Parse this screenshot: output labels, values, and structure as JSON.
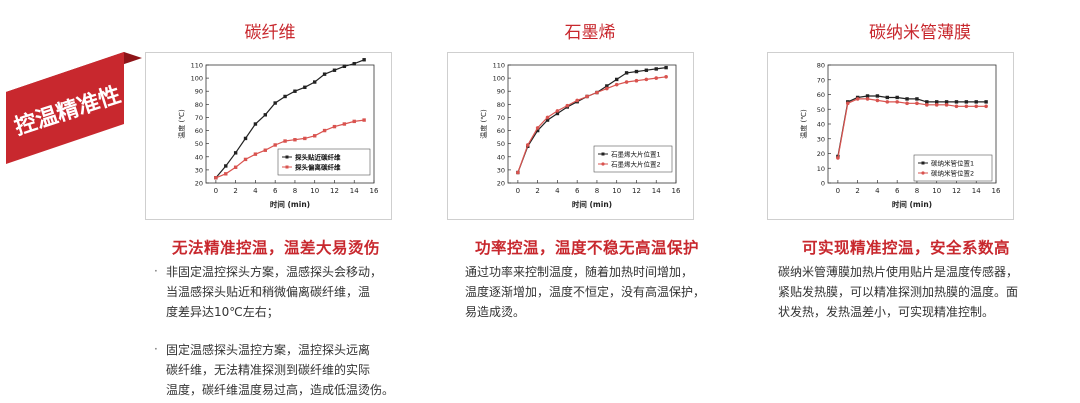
{
  "columns": [
    {
      "title": "碳纤维"
    },
    {
      "title": "石墨烯"
    },
    {
      "title": "碳纳米管薄膜"
    }
  ],
  "banner": {
    "label": "控温精准性",
    "color": "#c8282e"
  },
  "colors": {
    "accent": "#c8282e",
    "series_black": "#222222",
    "series_red": "#d9534f"
  },
  "sections": [
    {
      "heading": "无法精准控温，温差大易烫伤",
      "paras": [
        {
          "bullet": "·",
          "lines": [
            "非固定温控探头方案，温感探头会移动，",
            "当温感探头贴近和稍微偏离碳纤维，温",
            "度差异达10℃左右；"
          ]
        },
        {
          "bullet": "·",
          "lines": [
            "固定温感探头温控方案，温控探头远离",
            "碳纤维，无法精准探测到碳纤维的实际",
            "温度，碳纤维温度易过高，造成低温烫伤。"
          ]
        }
      ]
    },
    {
      "heading": "功率控温，温度不稳无高温保护",
      "paras": [
        {
          "bullet": "",
          "lines": [
            "通过功率来控制温度，随着加热时间增加，",
            "温度逐渐增加，温度不恒定，没有高温保护，",
            "易造成烫。"
          ]
        }
      ]
    },
    {
      "heading": "可实现精准控温，安全系数高",
      "paras": [
        {
          "bullet": "",
          "lines": [
            "碳纳米管薄膜加热片使用贴片是温度传感器，",
            "紧贴发热膜，可以精准探测加热膜的温度。面",
            "状发热，发热温差小，可实现精准控制。"
          ]
        }
      ]
    }
  ],
  "chart_data": [
    {
      "type": "line",
      "xlabel": "时间 (min)",
      "ylabel": "温度 (℃)",
      "xlim": [
        -1,
        16
      ],
      "ylim": [
        20,
        110
      ],
      "xticks": [
        0,
        2,
        4,
        6,
        8,
        10,
        12,
        14,
        16
      ],
      "yticks": [
        20,
        30,
        40,
        50,
        60,
        70,
        80,
        90,
        100,
        110
      ],
      "legend_position": "bottom-right",
      "series": [
        {
          "name": "探头贴近碳纤维",
          "color": "#222222",
          "marker": "square",
          "x": [
            0,
            1,
            2,
            3,
            4,
            5,
            6,
            7,
            8,
            9,
            10,
            11,
            12,
            13,
            14,
            15
          ],
          "y": [
            24,
            33,
            43,
            54,
            65,
            72,
            81,
            86,
            90,
            93,
            97,
            103,
            106,
            109,
            111,
            114
          ]
        },
        {
          "name": "探头偏离碳纤维",
          "color": "#d9534f",
          "marker": "square",
          "x": [
            0,
            1,
            2,
            3,
            4,
            5,
            6,
            7,
            8,
            9,
            10,
            11,
            12,
            13,
            14,
            15
          ],
          "y": [
            24,
            27,
            32,
            38,
            42,
            45,
            49,
            52,
            53,
            54,
            56,
            60,
            63,
            65,
            67,
            68
          ]
        }
      ]
    },
    {
      "type": "line",
      "xlabel": "时间 (min)",
      "ylabel": "温度 (℃)",
      "xlim": [
        -1,
        16
      ],
      "ylim": [
        20,
        110
      ],
      "xticks": [
        0,
        2,
        4,
        6,
        8,
        10,
        12,
        14,
        16
      ],
      "yticks": [
        20,
        30,
        40,
        50,
        60,
        70,
        80,
        90,
        100,
        110
      ],
      "legend_position": "middle-right",
      "series": [
        {
          "name": "石墨烯大片位置1",
          "color": "#222222",
          "marker": "square",
          "x": [
            0,
            1,
            2,
            3,
            4,
            5,
            6,
            7,
            8,
            9,
            10,
            11,
            12,
            13,
            14,
            15
          ],
          "y": [
            28,
            48,
            60,
            68,
            73,
            78,
            82,
            86,
            89,
            94,
            99,
            104,
            105,
            106,
            107,
            108
          ]
        },
        {
          "name": "石墨烯大片位置2",
          "color": "#d9534f",
          "marker": "circle",
          "x": [
            0,
            1,
            2,
            3,
            4,
            5,
            6,
            7,
            8,
            9,
            10,
            11,
            12,
            13,
            14,
            15
          ],
          "y": [
            28,
            49,
            62,
            70,
            75,
            79,
            83,
            86,
            89,
            92,
            95,
            97,
            98,
            99,
            100,
            101
          ]
        }
      ]
    },
    {
      "type": "line",
      "xlabel": "时间 (min)",
      "ylabel": "温度 (℃)",
      "xlim": [
        -1,
        16
      ],
      "ylim": [
        0,
        80
      ],
      "xticks": [
        0,
        2,
        4,
        6,
        8,
        10,
        12,
        14,
        16
      ],
      "yticks": [
        0,
        10,
        20,
        30,
        40,
        50,
        60,
        70,
        80
      ],
      "legend_position": "bottom-right",
      "series": [
        {
          "name": "碳纳米管位置1",
          "color": "#222222",
          "marker": "square",
          "x": [
            0,
            1,
            2,
            3,
            4,
            5,
            6,
            7,
            8,
            9,
            10,
            11,
            12,
            13,
            14,
            15
          ],
          "y": [
            18,
            55,
            58,
            59,
            59,
            58,
            58,
            57,
            57,
            55,
            55,
            55,
            55,
            55,
            55,
            55
          ]
        },
        {
          "name": "碳纳米管位置2",
          "color": "#d9534f",
          "marker": "circle",
          "x": [
            0,
            1,
            2,
            3,
            4,
            5,
            6,
            7,
            8,
            9,
            10,
            11,
            12,
            13,
            14,
            15
          ],
          "y": [
            17,
            54,
            57,
            57,
            56,
            55,
            55,
            54,
            54,
            53,
            53,
            53,
            52,
            52,
            52,
            52
          ]
        }
      ]
    }
  ]
}
